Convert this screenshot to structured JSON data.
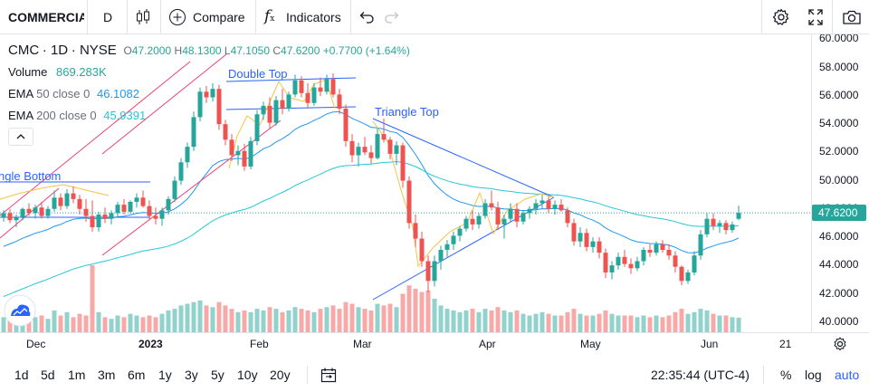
{
  "toolbar": {
    "symbol": "COMMERCIA",
    "interval": "D",
    "compare_label": "Compare",
    "indicators_label": "Indicators"
  },
  "legend": {
    "symbol": "CMC",
    "interval": "1D",
    "exchange": "NYSE",
    "open_label": "O",
    "open_value": "47.2000",
    "high_label": "H",
    "high_value": "48.1300",
    "low_label": "L",
    "low_value": "47.1050",
    "close_label": "C",
    "close_value": "47.6200",
    "change": "+0.7700 (+1.64%)",
    "volume_label": "Volume",
    "volume_value": "869.283K",
    "ema50_label": "EMA",
    "ema50_params": "50 close 0",
    "ema50_value": "46.1082",
    "ema200_label": "EMA",
    "ema200_params": "200 close 0",
    "ema200_value": "45.9391"
  },
  "drawings": {
    "double_top": "Double Top",
    "triangle_top": "Triangle Top",
    "triangle_bottom": "ngle Bottom"
  },
  "price_axis": {
    "ticks": [
      "60.0000",
      "58.0000",
      "56.0000",
      "54.0000",
      "52.0000",
      "50.0000",
      "48.0000",
      "46.0000",
      "44.0000",
      "42.0000",
      "40.0000"
    ],
    "last_price": "47.6200"
  },
  "time_axis": {
    "labels": [
      "Dec",
      "2023",
      "Feb",
      "Mar",
      "Apr",
      "May",
      "Jun",
      "21"
    ]
  },
  "bottombar": {
    "ranges": [
      "1d",
      "5d",
      "1m",
      "3m",
      "6m",
      "1y",
      "3y",
      "5y",
      "10y",
      "20y"
    ],
    "clock": "22:35:44 (UTC-4)",
    "percent": "%",
    "log": "log",
    "auto": "auto"
  },
  "colors": {
    "up": "#26a69a",
    "down": "#ef5350",
    "ema50": "#2196f3",
    "ema200": "#26c6da",
    "drawing": "#2962ff",
    "accent": "#2962ff"
  },
  "chart_data": {
    "type": "candlestick",
    "price_range": [
      40,
      60
    ],
    "candles": [
      [
        47.3,
        47.8,
        47.0,
        47.6,
        0.9
      ],
      [
        47.6,
        47.9,
        46.9,
        47.1,
        1.1
      ],
      [
        47.1,
        47.5,
        46.6,
        47.3,
        0.8
      ],
      [
        47.3,
        48.0,
        47.1,
        47.9,
        1.0
      ],
      [
        47.9,
        48.3,
        47.4,
        47.6,
        1.2
      ],
      [
        47.6,
        48.2,
        47.2,
        48.0,
        0.9
      ],
      [
        48.0,
        48.4,
        47.2,
        47.4,
        1.0
      ],
      [
        47.4,
        48.1,
        47.2,
        47.9,
        0.8
      ],
      [
        47.9,
        49.2,
        47.7,
        48.7,
        1.3
      ],
      [
        48.7,
        49.0,
        47.8,
        48.1,
        1.0
      ],
      [
        48.1,
        49.3,
        47.9,
        49.0,
        1.2
      ],
      [
        49.0,
        49.5,
        48.3,
        48.6,
        0.9
      ],
      [
        48.6,
        48.9,
        47.5,
        47.9,
        1.1
      ],
      [
        47.9,
        48.6,
        47.0,
        47.4,
        1.0
      ],
      [
        47.4,
        48.5,
        46.3,
        46.6,
        4.0
      ],
      [
        46.6,
        47.7,
        46.3,
        47.5,
        1.2
      ],
      [
        47.5,
        48.0,
        46.9,
        47.2,
        0.9
      ],
      [
        47.2,
        47.8,
        46.8,
        47.6,
        0.8
      ],
      [
        47.6,
        48.4,
        47.3,
        48.2,
        1.0
      ],
      [
        48.2,
        48.6,
        47.5,
        47.7,
        0.9
      ],
      [
        47.7,
        48.5,
        47.6,
        48.4,
        1.1
      ],
      [
        48.4,
        49.0,
        48.0,
        48.7,
        1.0
      ],
      [
        48.7,
        49.2,
        48.0,
        48.1,
        0.9
      ],
      [
        48.1,
        48.5,
        47.1,
        47.4,
        1.0
      ],
      [
        47.4,
        48.0,
        46.8,
        47.2,
        0.9
      ],
      [
        47.2,
        48.0,
        46.7,
        47.8,
        1.1
      ],
      [
        47.8,
        48.8,
        47.5,
        48.6,
        1.3
      ],
      [
        48.6,
        50.2,
        48.4,
        49.9,
        1.4
      ],
      [
        49.9,
        51.5,
        49.6,
        51.2,
        1.6
      ],
      [
        51.2,
        52.6,
        50.8,
        52.3,
        1.7
      ],
      [
        52.3,
        54.8,
        52.0,
        54.4,
        1.8
      ],
      [
        54.4,
        56.5,
        54.1,
        56.2,
        1.9
      ],
      [
        56.2,
        56.6,
        55.4,
        55.8,
        1.6
      ],
      [
        55.8,
        56.8,
        55.5,
        56.4,
        1.5
      ],
      [
        56.4,
        56.7,
        53.5,
        53.9,
        1.8
      ],
      [
        53.9,
        54.2,
        52.4,
        52.8,
        1.6
      ],
      [
        52.8,
        53.2,
        51.3,
        51.7,
        1.4
      ],
      [
        51.7,
        52.4,
        51.0,
        52.0,
        1.2
      ],
      [
        52.0,
        52.5,
        50.6,
        50.9,
        1.3
      ],
      [
        50.9,
        53.0,
        50.7,
        52.7,
        1.2
      ],
      [
        52.7,
        54.9,
        52.4,
        54.6,
        1.4
      ],
      [
        54.6,
        55.5,
        54.2,
        55.2,
        1.3
      ],
      [
        55.2,
        55.8,
        53.6,
        54.0,
        1.5
      ],
      [
        54.0,
        55.9,
        53.8,
        55.6,
        1.4
      ],
      [
        55.6,
        56.4,
        54.6,
        55.0,
        1.2
      ],
      [
        55.0,
        56.2,
        54.8,
        56.0,
        1.3
      ],
      [
        56.0,
        57.4,
        55.8,
        57.0,
        1.5
      ],
      [
        57.0,
        57.3,
        55.8,
        56.1,
        1.4
      ],
      [
        56.1,
        56.8,
        55.0,
        55.4,
        1.3
      ],
      [
        55.4,
        56.8,
        55.2,
        56.5,
        1.2
      ],
      [
        56.5,
        57.2,
        55.9,
        56.2,
        1.4
      ],
      [
        56.2,
        57.4,
        56.0,
        57.1,
        1.5
      ],
      [
        57.1,
        57.5,
        55.8,
        56.0,
        1.6
      ],
      [
        56.0,
        56.4,
        54.6,
        55.0,
        1.4
      ],
      [
        55.0,
        55.3,
        52.3,
        52.7,
        1.8
      ],
      [
        52.7,
        53.2,
        51.2,
        51.7,
        1.7
      ],
      [
        51.7,
        52.6,
        50.9,
        52.3,
        1.5
      ],
      [
        52.3,
        53.0,
        51.7,
        51.9,
        1.4
      ],
      [
        51.9,
        52.4,
        51.1,
        51.5,
        1.3
      ],
      [
        51.5,
        53.6,
        51.4,
        53.2,
        1.7
      ],
      [
        53.2,
        54.3,
        52.6,
        52.8,
        1.6
      ],
      [
        52.8,
        53.0,
        51.4,
        51.8,
        1.7
      ],
      [
        51.8,
        52.7,
        51.0,
        52.4,
        1.5
      ],
      [
        52.4,
        52.6,
        49.4,
        49.9,
        2.3
      ],
      [
        49.9,
        50.2,
        46.5,
        46.9,
        2.8
      ],
      [
        46.9,
        47.5,
        45.2,
        45.8,
        2.6
      ],
      [
        45.8,
        46.3,
        43.8,
        44.2,
        2.4
      ],
      [
        44.2,
        44.6,
        42.0,
        42.8,
        2.5
      ],
      [
        42.8,
        44.6,
        42.4,
        44.2,
        2.0
      ],
      [
        44.2,
        45.3,
        43.6,
        45.0,
        1.6
      ],
      [
        45.0,
        45.7,
        44.5,
        45.4,
        1.4
      ],
      [
        45.4,
        46.3,
        45.0,
        46.0,
        1.3
      ],
      [
        46.0,
        46.7,
        45.6,
        46.5,
        1.2
      ],
      [
        46.5,
        47.4,
        46.3,
        47.2,
        1.3
      ],
      [
        47.2,
        47.8,
        46.4,
        46.8,
        1.4
      ],
      [
        46.8,
        47.6,
        46.5,
        47.4,
        1.2
      ],
      [
        47.4,
        48.6,
        47.2,
        48.3,
        1.4
      ],
      [
        48.3,
        49.2,
        47.8,
        48.0,
        1.3
      ],
      [
        48.0,
        48.4,
        46.4,
        46.8,
        1.5
      ],
      [
        46.8,
        47.5,
        45.8,
        47.2,
        1.3
      ],
      [
        47.2,
        48.3,
        47.0,
        47.9,
        1.2
      ],
      [
        47.9,
        48.3,
        46.6,
        47.0,
        1.3
      ],
      [
        47.0,
        47.8,
        46.8,
        47.6,
        1.1
      ],
      [
        47.6,
        48.1,
        47.2,
        47.9,
        1.0
      ],
      [
        47.9,
        48.6,
        47.5,
        48.3,
        1.1
      ],
      [
        48.3,
        48.9,
        47.9,
        48.5,
        1.2
      ],
      [
        48.5,
        48.8,
        47.6,
        47.9,
        1.1
      ],
      [
        47.9,
        48.5,
        47.5,
        48.2,
        1.0
      ],
      [
        48.2,
        48.6,
        47.7,
        47.8,
        1.0
      ],
      [
        47.8,
        48.0,
        46.6,
        46.9,
        1.2
      ],
      [
        46.9,
        47.2,
        45.3,
        45.6,
        1.4
      ],
      [
        45.6,
        46.6,
        45.2,
        46.2,
        1.1
      ],
      [
        46.2,
        46.5,
        44.9,
        45.2,
        1.0
      ],
      [
        45.2,
        45.9,
        44.8,
        45.6,
        1.0
      ],
      [
        45.6,
        45.9,
        44.4,
        44.8,
        1.1
      ],
      [
        44.8,
        45.1,
        43.0,
        43.4,
        1.3
      ],
      [
        43.4,
        44.2,
        42.9,
        43.9,
        1.1
      ],
      [
        43.9,
        44.8,
        43.6,
        44.5,
        1.0
      ],
      [
        44.5,
        45.0,
        43.8,
        44.0,
        1.0
      ],
      [
        44.0,
        44.4,
        43.3,
        43.7,
        1.0
      ],
      [
        43.7,
        44.5,
        43.5,
        44.2,
        0.9
      ],
      [
        44.2,
        45.2,
        43.9,
        45.0,
        1.0
      ],
      [
        45.0,
        45.4,
        44.5,
        44.8,
        0.9
      ],
      [
        44.8,
        45.6,
        44.6,
        45.4,
        1.0
      ],
      [
        45.4,
        45.7,
        44.8,
        45.0,
        0.9
      ],
      [
        45.0,
        45.4,
        44.3,
        44.6,
        1.0
      ],
      [
        44.6,
        44.9,
        43.4,
        43.8,
        1.2
      ],
      [
        43.8,
        43.9,
        42.5,
        42.8,
        1.4
      ],
      [
        42.8,
        43.6,
        42.6,
        43.4,
        1.1
      ],
      [
        43.4,
        44.9,
        43.2,
        44.6,
        1.2
      ],
      [
        44.6,
        46.4,
        44.3,
        46.1,
        1.4
      ],
      [
        46.1,
        47.6,
        45.9,
        47.2,
        1.3
      ],
      [
        47.2,
        47.6,
        46.4,
        46.7,
        1.1
      ],
      [
        46.7,
        47.1,
        46.2,
        46.9,
        1.0
      ],
      [
        46.9,
        47.1,
        46.1,
        46.4,
        1.0
      ],
      [
        46.4,
        47.0,
        46.2,
        46.8,
        0.9
      ],
      [
        47.2,
        48.13,
        47.105,
        47.62,
        0.87
      ]
    ]
  }
}
